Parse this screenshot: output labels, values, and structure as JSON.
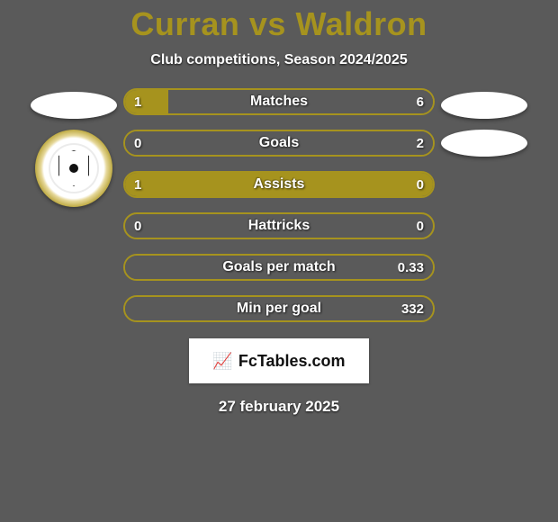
{
  "background_color": "#5a5a5a",
  "title": {
    "text": "Curran vs Waldron",
    "color": "#a6931e",
    "fontsize": 36
  },
  "subtitle": {
    "text": "Club competitions, Season 2024/2025",
    "color": "#ffffff",
    "fontsize": 16
  },
  "left_player": {
    "color": "#a6931e",
    "ellipses": 1,
    "has_crest": true
  },
  "right_player": {
    "color": "#5a5a5a",
    "ellipses": 2,
    "has_crest": false
  },
  "bar_style": {
    "border_color": "#a6931e",
    "empty_fill": "#5a5a5a",
    "left_fill": "#a6931e",
    "right_fill": "#5a5a5a",
    "height": 30,
    "radius": 16,
    "label_color": "#ffffff",
    "label_fontsize": 16,
    "value_fontsize": 15
  },
  "bars": [
    {
      "label": "Matches",
      "left_value": "1",
      "right_value": "6",
      "left_pct": 14,
      "right_pct": 86
    },
    {
      "label": "Goals",
      "left_value": "0",
      "right_value": "2",
      "left_pct": 0,
      "right_pct": 100
    },
    {
      "label": "Assists",
      "left_value": "1",
      "right_value": "0",
      "left_pct": 100,
      "right_pct": 0
    },
    {
      "label": "Hattricks",
      "left_value": "0",
      "right_value": "0",
      "left_pct": 0,
      "right_pct": 0
    },
    {
      "label": "Goals per match",
      "left_value": "",
      "right_value": "0.33",
      "left_pct": 0,
      "right_pct": 100
    },
    {
      "label": "Min per goal",
      "left_value": "",
      "right_value": "332",
      "left_pct": 0,
      "right_pct": 100
    }
  ],
  "brand": {
    "icon": "📈",
    "text": "FcTables.com",
    "bg": "#ffffff",
    "color": "#111111"
  },
  "date": {
    "text": "27 february 2025",
    "color": "#ffffff",
    "fontsize": 17
  }
}
